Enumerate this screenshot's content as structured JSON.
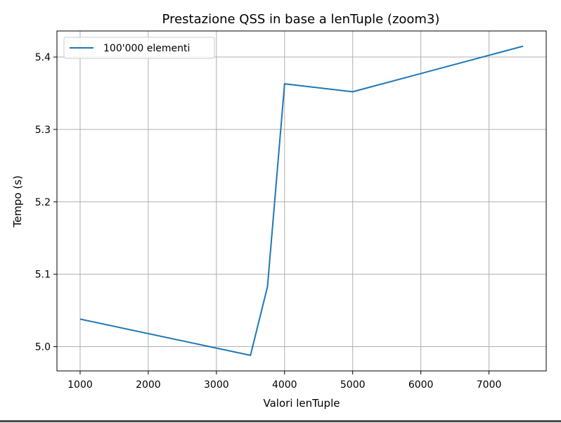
{
  "chart_data": {
    "type": "line",
    "title": "Prestazione QSS in base a lenTuple (zoom3)",
    "xlabel": "Valori lenTuple",
    "ylabel": "Tempo (s)",
    "xlim": [
      660,
      7840
    ],
    "ylim": [
      4.9665,
      5.436
    ],
    "xticks": [
      1000,
      2000,
      3000,
      4000,
      5000,
      6000,
      7000
    ],
    "yticks": [
      5.0,
      5.1,
      5.2,
      5.3,
      5.4
    ],
    "xtick_labels": [
      "1000",
      "2000",
      "3000",
      "4000",
      "5000",
      "6000",
      "7000"
    ],
    "ytick_labels": [
      "5.0",
      "5.1",
      "5.2",
      "5.3",
      "5.4"
    ],
    "grid": true,
    "legend_position": "upper-left",
    "series": [
      {
        "name": "100'000 elementi",
        "color": "#1f77b4",
        "x": [
          1000,
          3500,
          3750,
          4000,
          5000,
          7500
        ],
        "y": [
          5.038,
          4.988,
          5.083,
          5.363,
          5.352,
          5.415
        ]
      }
    ]
  }
}
